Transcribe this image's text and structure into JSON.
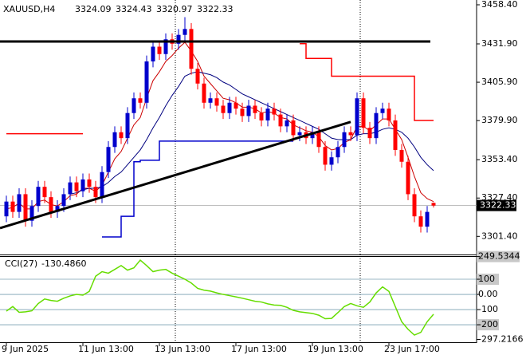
{
  "chart_data": {
    "type": "candlestick",
    "symbol": "XAUUSD,H4",
    "categories": [
      "9 Jun 2025",
      null,
      null,
      null,
      null,
      null,
      null,
      null,
      null,
      null,
      null,
      null,
      "11 Jun 13:00",
      null,
      null,
      null,
      null,
      null,
      null,
      null,
      null,
      null,
      null,
      null,
      "13 Jun 13:00",
      null,
      null,
      null,
      null,
      null,
      null,
      null,
      null,
      null,
      null,
      null,
      "17 Jun 13:00",
      null,
      null,
      null,
      null,
      null,
      null,
      null,
      null,
      null,
      null,
      null,
      "19 Jun 13:00",
      null,
      null,
      null,
      null,
      null,
      null,
      null,
      null,
      null,
      null,
      null,
      "23 Jun 17:00",
      null,
      null,
      null,
      null,
      null,
      null,
      null
    ],
    "open": [
      3315,
      3325,
      3318,
      3330,
      3312,
      3322,
      3335,
      3328,
      3318,
      3322,
      3330,
      3338,
      3332,
      3340,
      3335,
      3328,
      3345,
      3362,
      3372,
      3368,
      3385,
      3395,
      3392,
      3420,
      3430,
      3425,
      3435,
      3432,
      3438,
      3442,
      3415,
      3405,
      3392,
      3395,
      3390,
      3385,
      3392,
      3388,
      3383,
      3390,
      3385,
      3380,
      3388,
      3384,
      3376,
      3380,
      3370,
      3372,
      3368,
      3372,
      3362,
      3350,
      3355,
      3362,
      3372,
      3370,
      3395,
      3375,
      3368,
      3385,
      3388,
      3380,
      3360,
      3352,
      3330,
      3315,
      3308,
      3324.09
    ],
    "high": [
      3329,
      3329,
      3334,
      3334,
      3326,
      3339,
      3339,
      3332,
      3326,
      3334,
      3342,
      3342,
      3344,
      3344,
      3339,
      3349,
      3366,
      3376,
      3376,
      3389,
      3399,
      3399,
      3424,
      3434,
      3434,
      3439,
      3439,
      3442,
      3450,
      3446,
      3419,
      3409,
      3399,
      3399,
      3394,
      3396,
      3396,
      3392,
      3394,
      3394,
      3389,
      3392,
      3392,
      3388,
      3384,
      3384,
      3376,
      3376,
      3376,
      3376,
      3366,
      3359,
      3366,
      3376,
      3376,
      3399,
      3399,
      3379,
      3389,
      3392,
      3392,
      3384,
      3364,
      3356,
      3334,
      3319,
      3322,
      3324.43
    ],
    "low": [
      3311,
      3314,
      3314,
      3308,
      3308,
      3318,
      3324,
      3314,
      3314,
      3318,
      3326,
      3328,
      3328,
      3331,
      3324,
      3324,
      3341,
      3358,
      3364,
      3364,
      3381,
      3388,
      3388,
      3416,
      3421,
      3421,
      3428,
      3428,
      3434,
      3411,
      3401,
      3388,
      3388,
      3386,
      3381,
      3381,
      3384,
      3379,
      3379,
      3381,
      3376,
      3376,
      3380,
      3372,
      3372,
      3366,
      3366,
      3364,
      3364,
      3358,
      3346,
      3346,
      3351,
      3358,
      3366,
      3366,
      3371,
      3364,
      3364,
      3381,
      3376,
      3356,
      3348,
      3326,
      3311,
      3304,
      3304,
      3320.97
    ],
    "close": [
      3325,
      3318,
      3330,
      3312,
      3322,
      3335,
      3328,
      3318,
      3322,
      3330,
      3338,
      3332,
      3340,
      3335,
      3328,
      3345,
      3362,
      3372,
      3368,
      3385,
      3395,
      3392,
      3420,
      3430,
      3425,
      3435,
      3432,
      3438,
      3442,
      3415,
      3405,
      3392,
      3395,
      3390,
      3385,
      3392,
      3388,
      3383,
      3390,
      3385,
      3380,
      3388,
      3384,
      3376,
      3380,
      3370,
      3372,
      3368,
      3372,
      3362,
      3350,
      3355,
      3362,
      3372,
      3370,
      3395,
      3375,
      3368,
      3385,
      3388,
      3380,
      3360,
      3352,
      3330,
      3315,
      3308,
      3318,
      3322.33
    ],
    "up_color": "#0000cc",
    "down_color": "#ff0000",
    "lines": [
      {
        "color": "#cc0000",
        "values": [
          3320,
          3321,
          3324,
          3320,
          3320,
          3325,
          3326,
          3323,
          3322,
          3325,
          3329,
          3330,
          3334,
          3334,
          3332,
          3336,
          3345,
          3354,
          3359,
          3368,
          3377,
          3382,
          3395,
          3407,
          3413,
          3420,
          3424,
          3429,
          3433,
          3427,
          3420,
          3410,
          3405,
          3400,
          3395,
          3394,
          3392,
          3389,
          3389,
          3388,
          3385,
          3386,
          3385,
          3382,
          3381,
          3377,
          3375,
          3373,
          3372,
          3369,
          3363,
          3360,
          3361,
          3365,
          3367,
          3376,
          3376,
          3373,
          3377,
          3381,
          3381,
          3374,
          3367,
          3355,
          3342,
          3331,
          3327,
          3325
        ]
      },
      {
        "color": "#00007f",
        "values": [
          null,
          null,
          null,
          null,
          null,
          null,
          null,
          null,
          null,
          null,
          3330,
          3331,
          3333,
          3334,
          3334,
          3335,
          3338,
          3342,
          3345,
          3350,
          3355,
          3360,
          3367,
          3375,
          3382,
          3390,
          3397,
          3403,
          3410,
          3412,
          3413,
          3412,
          3411,
          3409,
          3406,
          3404,
          3401,
          3398,
          3396,
          3394,
          3392,
          3390,
          3388,
          3386,
          3384,
          3382,
          3380,
          3378,
          3376,
          3374,
          3371,
          3368,
          3367,
          3367,
          3367,
          3370,
          3371,
          3371,
          3372,
          3374,
          3375,
          3374,
          3372,
          3368,
          3362,
          3355,
          3350,
          3346
        ]
      }
    ],
    "steps": [
      {
        "color": "#ff0000",
        "values": [
          3371,
          3371,
          3371,
          3371,
          3371,
          3371,
          3371,
          3371,
          3371,
          3371,
          3371,
          3371,
          3371,
          null,
          null,
          null,
          null,
          null,
          null,
          null,
          null,
          null,
          null,
          null,
          null,
          null,
          null,
          null,
          null,
          null,
          null,
          null,
          null,
          null,
          null,
          null,
          null,
          null,
          null,
          null,
          null,
          null,
          null,
          null,
          null,
          null,
          3432,
          3422,
          3422,
          3422,
          3422,
          3410,
          3410,
          3410,
          3410,
          3410,
          3410,
          3410,
          3410,
          3410,
          3410,
          3410,
          3410,
          3410,
          3380,
          3380,
          3380,
          3380
        ]
      },
      {
        "color": "#0000cc",
        "values": [
          null,
          null,
          null,
          null,
          null,
          null,
          null,
          null,
          null,
          null,
          null,
          null,
          null,
          null,
          null,
          3301,
          3301,
          3301,
          3315,
          3315,
          3352,
          3353,
          3353,
          3353,
          3366,
          3366,
          3366,
          3366,
          3366,
          3366,
          3366,
          3366,
          3366,
          3366,
          3366,
          3366,
          3366,
          3366,
          3366,
          3366,
          3366,
          3366,
          3366,
          3366,
          3366,
          3366,
          null,
          null,
          null,
          null,
          null,
          null,
          null,
          null,
          null,
          null,
          null,
          null,
          null,
          null,
          null,
          null,
          null,
          null,
          null,
          null,
          null,
          null
        ]
      }
    ],
    "trendlines": [
      {
        "color": "#000000",
        "from": [
          -1,
          3307
        ],
        "to": [
          54,
          3379
        ]
      },
      {
        "color": "#000000",
        "from": [
          -1,
          3433.5
        ],
        "to": [
          66.5,
          3433.5
        ]
      }
    ],
    "ylim": [
      3289.67,
      3461.64
    ],
    "yticks": [
      {
        "value": 3458.4,
        "label": "3458.40"
      },
      {
        "value": 3431.9,
        "label": "3431.90"
      },
      {
        "value": 3405.9,
        "label": "3405.90"
      },
      {
        "value": 3379.9,
        "label": "3379.90"
      },
      {
        "value": 3353.4,
        "label": "3353.40"
      },
      {
        "value": 3327.4,
        "label": "3327.40"
      },
      {
        "value": 3301.4,
        "label": "3301.40"
      }
    ],
    "cci": {
      "name": "CCI(27)",
      "current": {
        "value": -130.486,
        "label": "-130.4860"
      },
      "color": "#66dd00",
      "values": [
        -110,
        -80,
        -118,
        -115,
        -108,
        -60,
        -30,
        -40,
        -45,
        -25,
        -10,
        0,
        -5,
        20,
        120,
        150,
        140,
        165,
        190,
        160,
        175,
        226,
        190,
        150,
        160,
        165,
        140,
        120,
        100,
        75,
        40,
        28,
        22,
        10,
        0,
        -8,
        -16,
        -25,
        -35,
        -45,
        -50,
        -62,
        -70,
        -72,
        -85,
        -105,
        -115,
        -120,
        -125,
        -137,
        -160,
        -158,
        -120,
        -80,
        -60,
        -75,
        -85,
        -50,
        10,
        50,
        20,
        -80,
        -180,
        -230,
        -268,
        -250,
        -180,
        -130.486
      ],
      "ylim": [
        -310,
        247.4
      ],
      "yticks": [
        {
          "value": 249.5344,
          "label": "249.5344"
        },
        100,
        {
          "value": 0,
          "label": "0.00"
        },
        -100,
        -200,
        {
          "value": -297.2166,
          "label": "-297.2166"
        }
      ]
    }
  }
}
